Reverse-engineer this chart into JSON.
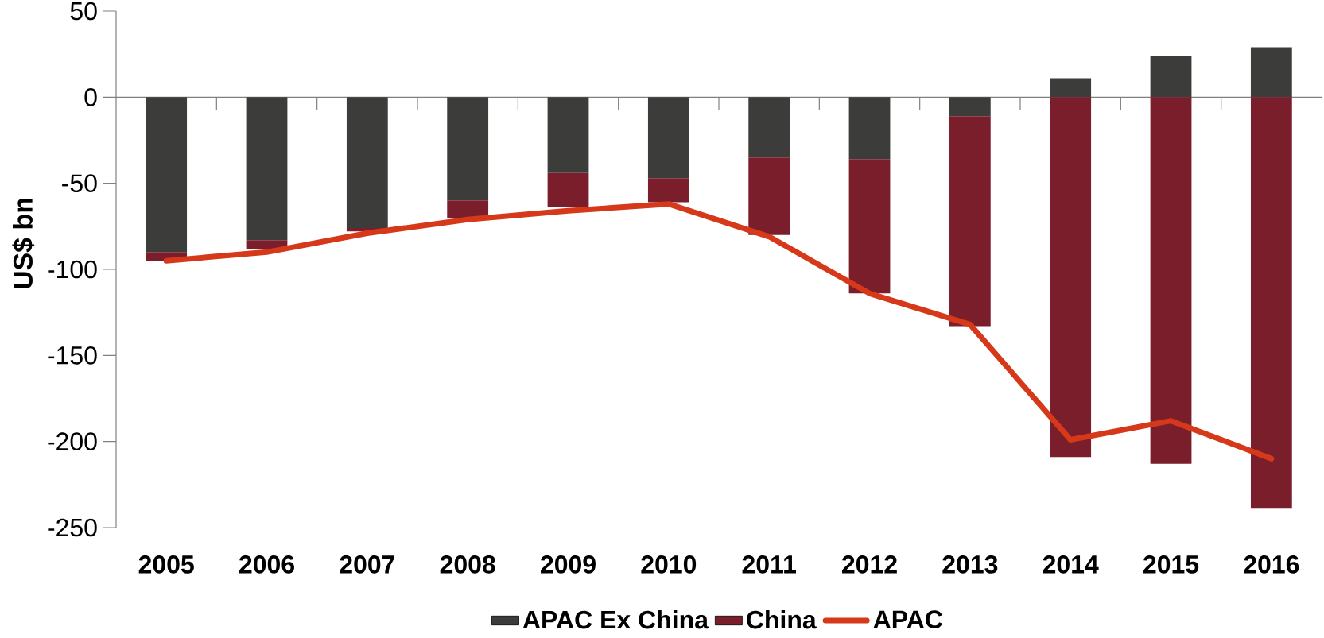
{
  "chart_data": {
    "type": "bar",
    "stacked": true,
    "ylabel": "US$ bn",
    "categories": [
      "2005",
      "2006",
      "2007",
      "2008",
      "2009",
      "2010",
      "2011",
      "2012",
      "2013",
      "2014",
      "2015",
      "2016"
    ],
    "series": [
      {
        "name": "APAC Ex China",
        "color": "#3c3c3b",
        "values": [
          -90,
          -83,
          -76,
          -60,
          -44,
          -47,
          -35,
          -36,
          -11,
          11,
          24,
          29
        ]
      },
      {
        "name": "China",
        "color": "#7b1e2b",
        "values": [
          -5,
          -5,
          -2,
          -10,
          -20,
          -14,
          -45,
          -78,
          -122,
          -209,
          -213,
          -239
        ]
      },
      {
        "name": "APAC",
        "type": "line",
        "color": "#d6391a",
        "line_style": "solid",
        "marker": "none",
        "values": [
          -95,
          -90,
          -79,
          -71,
          -66,
          -62,
          -81,
          -114,
          -132,
          -199,
          -188,
          -210
        ]
      }
    ],
    "ylim": [
      -250,
      50
    ],
    "yticks": [
      -250,
      -200,
      -150,
      -100,
      -50,
      0,
      50
    ],
    "legend": "bottom"
  }
}
